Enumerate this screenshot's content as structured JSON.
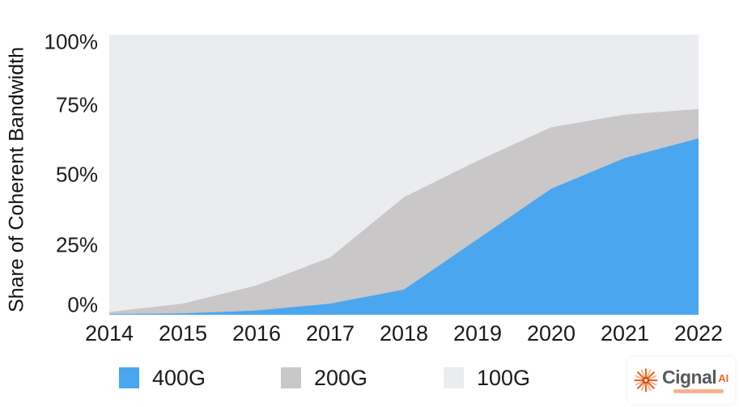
{
  "chart_data": {
    "type": "area",
    "stacked": true,
    "title": "",
    "xlabel": "",
    "ylabel": "Share of Coherent Bandwidth",
    "categories": [
      "2014",
      "2015",
      "2016",
      "2017",
      "2018",
      "2019",
      "2020",
      "2021",
      "2022"
    ],
    "y_ticks": [
      {
        "value": 0,
        "label": "0%"
      },
      {
        "value": 25,
        "label": "25%"
      },
      {
        "value": 50,
        "label": "50%"
      },
      {
        "value": 75,
        "label": "75%"
      },
      {
        "value": 100,
        "label": "100%"
      }
    ],
    "ylim": [
      0,
      100
    ],
    "units": "percent share",
    "grid": false,
    "legend_position": "bottom",
    "series": [
      {
        "name": "400G",
        "color": "#4aa7ef",
        "values": [
          0.2,
          0.5,
          1.5,
          4,
          9,
          27,
          45,
          56,
          63
        ]
      },
      {
        "name": "200G",
        "color": "#c9c7c8",
        "values": [
          0.8,
          3.5,
          9,
          16.5,
          33,
          28,
          22,
          15.5,
          10.5
        ]
      },
      {
        "name": "100G",
        "color": "#ebecf0",
        "values": [
          99,
          96,
          89.5,
          79.5,
          58,
          45,
          33,
          28.5,
          26.5
        ]
      }
    ]
  },
  "logo": {
    "brand": "Cignal",
    "suffix": "AI",
    "accent_color": "#ef6724",
    "brand_color": "#58595b"
  }
}
